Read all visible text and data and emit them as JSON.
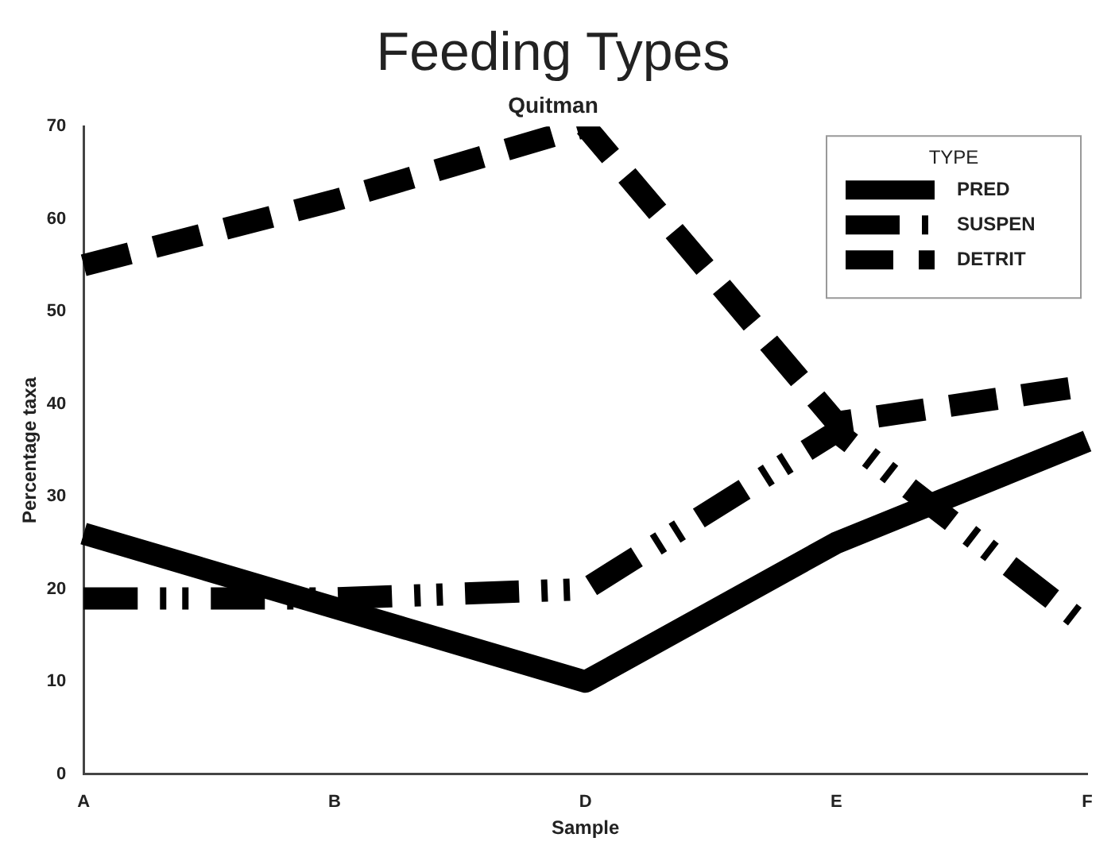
{
  "chart_data": {
    "type": "line",
    "title": "Feeding Types",
    "subtitle": "Quitman",
    "xlabel": "Sample",
    "ylabel": "Percentage taxa",
    "legend_title": "TYPE",
    "categories": [
      "A",
      "B",
      "D",
      "E",
      "F"
    ],
    "series": [
      {
        "name": "PRED",
        "color": "#000000",
        "line_style": "solid",
        "values": [
          26,
          18,
          10,
          25,
          36
        ]
      },
      {
        "name": "SUSPEN",
        "color": "#000000",
        "line_style": "dashdotdot",
        "values": [
          19,
          19,
          20,
          37,
          16
        ]
      },
      {
        "name": "DETRIT",
        "color": "#000000",
        "line_style": "dashed",
        "values": [
          55,
          62,
          70,
          38,
          42
        ]
      }
    ],
    "ylim": [
      0,
      70
    ],
    "yticks": [
      0,
      10,
      20,
      30,
      40,
      50,
      60,
      70
    ],
    "grid": false,
    "legend": "top right",
    "marker": "none"
  }
}
